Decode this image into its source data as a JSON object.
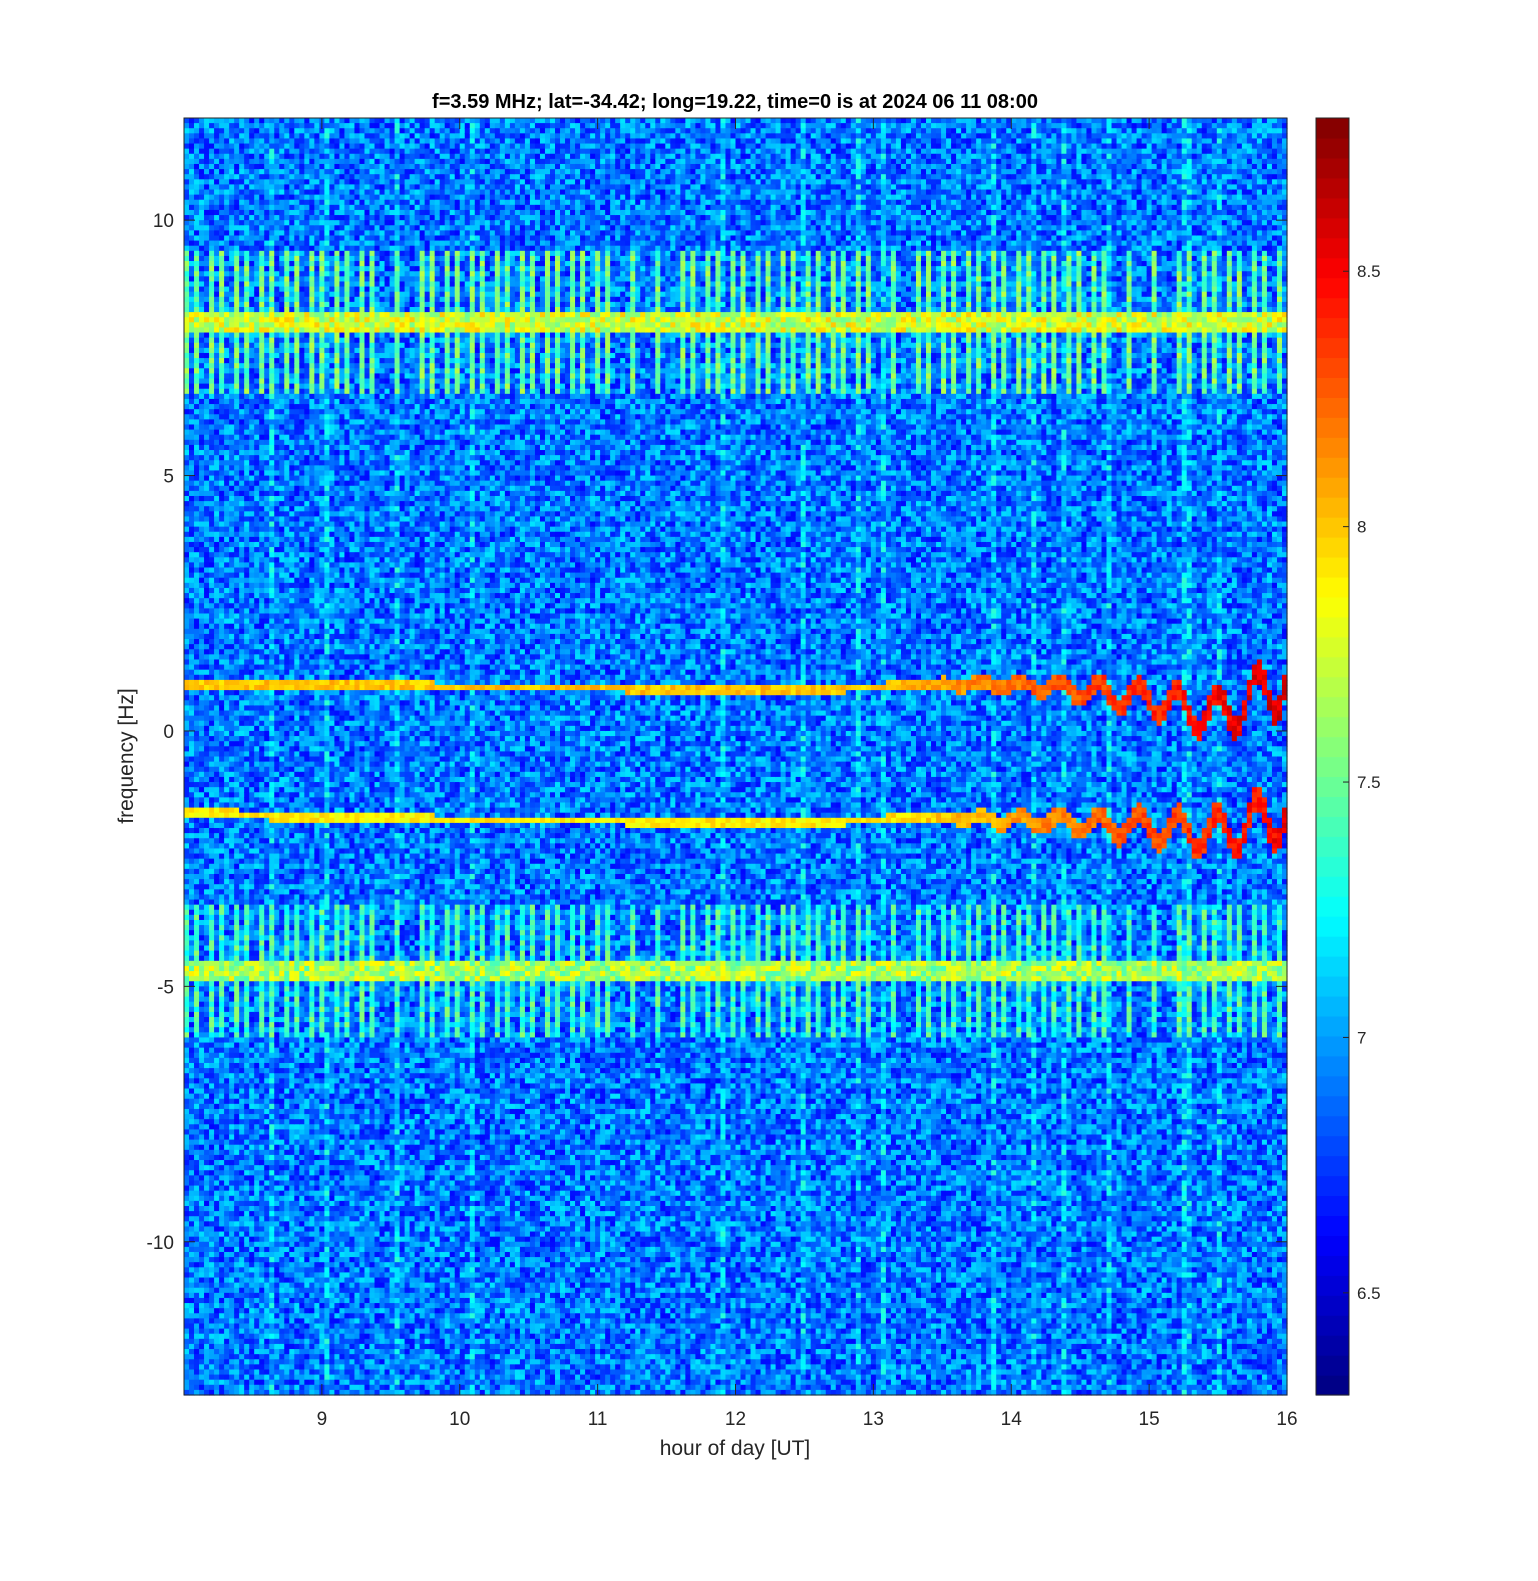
{
  "chart_data": {
    "type": "heatmap",
    "title": "f=3.59 MHz;  lat=-34.42; long=19.22, time=0 is at 2024 06 11 08:00",
    "xlabel": "hour of day [UT]",
    "ylabel": "frequency [Hz]",
    "xlim": [
      8,
      16
    ],
    "ylim": [
      -13,
      12
    ],
    "x_ticks": [
      9,
      10,
      11,
      12,
      13,
      14,
      15,
      16
    ],
    "y_ticks": [
      -10,
      -5,
      0,
      5,
      10
    ],
    "colormap": "jet",
    "clim": [
      6.3,
      8.8
    ],
    "colorbar_ticks": [
      6.5,
      7,
      7.5,
      8,
      8.5
    ],
    "background_level": 6.9,
    "features": [
      {
        "kind": "pulse-band",
        "freq_center": 8.0,
        "freq_halfwidth": 1.4,
        "level": 8.0,
        "pulse_period_hours": 0.09
      },
      {
        "kind": "pulse-band",
        "freq_center": -4.7,
        "freq_halfwidth": 1.3,
        "level": 7.9,
        "pulse_period_hours": 0.09
      },
      {
        "kind": "trace",
        "name": "upper trace",
        "x": [
          8.0,
          9.0,
          10.0,
          11.0,
          12.0,
          13.0,
          13.5,
          14.0,
          14.5,
          15.0,
          15.5,
          16.0
        ],
        "y": [
          0.9,
          0.9,
          0.85,
          0.85,
          0.8,
          0.85,
          0.9,
          0.9,
          0.8,
          0.6,
          0.3,
          1.0
        ],
        "level": 8.7
      },
      {
        "kind": "trace",
        "name": "lower trace",
        "x": [
          8.0,
          9.0,
          10.0,
          11.0,
          12.0,
          13.0,
          13.5,
          14.0,
          14.5,
          15.0,
          15.5,
          16.0
        ],
        "y": [
          -1.6,
          -1.7,
          -1.75,
          -1.75,
          -1.8,
          -1.75,
          -1.7,
          -1.75,
          -1.8,
          -1.9,
          -2.0,
          -1.6
        ],
        "level": 8.6
      }
    ]
  },
  "colors": {
    "axis": "#262626",
    "background": "#ffffff"
  }
}
